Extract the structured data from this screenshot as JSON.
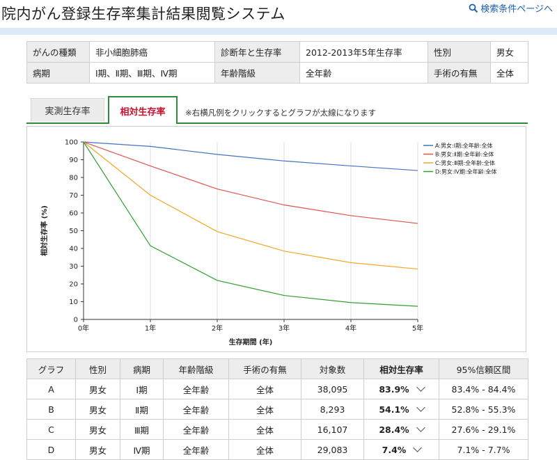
{
  "header": {
    "title": "院内がん登録生存率集計結果閲覧システム",
    "search_link": "検索条件ページへ"
  },
  "conditions": [
    {
      "label": "がんの種類",
      "value": "非小細胞肺癌"
    },
    {
      "label": "診断年と生存率",
      "value": "2012-2013年5年生存率"
    },
    {
      "label": "性別",
      "value": "男女"
    },
    {
      "label": "病期",
      "value": "Ⅰ期、Ⅱ期、Ⅲ期、Ⅳ期"
    },
    {
      "label": "年齢階級",
      "value": "全年齢"
    },
    {
      "label": "手術の有無",
      "value": "全体"
    }
  ],
  "tabs": {
    "measured": "実測生存率",
    "relative": "相対生存率",
    "active": "relative",
    "note": "※右横凡例をクリックするとグラフが太線になります"
  },
  "chart_data": {
    "type": "line",
    "x": [
      0,
      1,
      2,
      3,
      4,
      5
    ],
    "x_tick_labels": [
      "0年",
      "1年",
      "2年",
      "3年",
      "4年",
      "5年"
    ],
    "y_ticks": [
      0,
      10,
      20,
      30,
      40,
      50,
      60,
      70,
      80,
      90,
      100
    ],
    "ylim": [
      0,
      100
    ],
    "xlim": [
      0,
      5
    ],
    "xlabel": "生存期間 (年)",
    "ylabel": "相対生存率 (%)",
    "grid": "vertical",
    "legend_position": "top-right",
    "series": [
      {
        "name": "A:男女:Ⅰ期:全年齢:全体",
        "color": "#4472c4",
        "values": [
          100,
          97.5,
          93.0,
          89.3,
          86.5,
          83.9
        ]
      },
      {
        "name": "B:男女:Ⅱ期:全年齢:全体",
        "color": "#e0524a",
        "values": [
          100,
          86.5,
          73.5,
          64.5,
          58.5,
          54.1
        ]
      },
      {
        "name": "C:男女:Ⅲ期:全年齢:全体",
        "color": "#f5a623",
        "values": [
          100,
          70.0,
          49.5,
          38.5,
          32.0,
          28.4
        ]
      },
      {
        "name": "D:男女:Ⅳ期:全年齢:全体",
        "color": "#2ca02c",
        "values": [
          100,
          41.5,
          22.0,
          13.5,
          9.5,
          7.4
        ]
      }
    ]
  },
  "results": {
    "headers": [
      "グラフ",
      "性別",
      "病期",
      "年齢階級",
      "手術の有無",
      "対象数",
      "相対生存率",
      "95%信頼区間"
    ],
    "rows": [
      {
        "graph": "A",
        "sex": "男女",
        "stage": "Ⅰ期",
        "age": "全年齢",
        "surgery": "全体",
        "count": "38,095",
        "rate": "83.9%",
        "ci": "83.4% - 84.4%"
      },
      {
        "graph": "B",
        "sex": "男女",
        "stage": "Ⅱ期",
        "age": "全年齢",
        "surgery": "全体",
        "count": "8,293",
        "rate": "54.1%",
        "ci": "52.8% - 55.3%"
      },
      {
        "graph": "C",
        "sex": "男女",
        "stage": "Ⅲ期",
        "age": "全年齢",
        "surgery": "全体",
        "count": "16,107",
        "rate": "28.4%",
        "ci": "27.6% - 29.1%"
      },
      {
        "graph": "D",
        "sex": "男女",
        "stage": "Ⅳ期",
        "age": "全年齢",
        "surgery": "全体",
        "count": "29,083",
        "rate": "7.4%",
        "ci": "7.1% - 7.7%"
      }
    ]
  }
}
